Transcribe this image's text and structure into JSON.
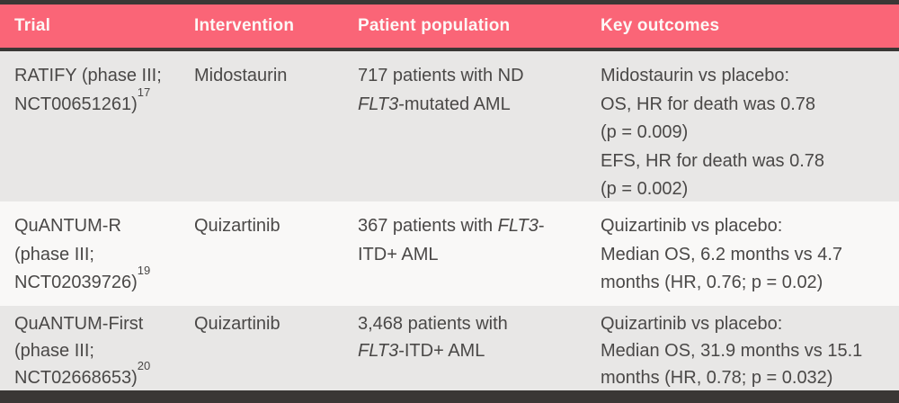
{
  "table": {
    "colors": {
      "accent": "#fa6577",
      "border": "#3a3735",
      "row-odd": "#e8e7e6",
      "row-even": "#f9f8f7",
      "text": "#4a4847",
      "header-text": "#fcf8f6"
    },
    "header": {
      "columns": [
        "Trial",
        "Intervention",
        "Patient population",
        "Key outcomes"
      ]
    },
    "rows": [
      {
        "trial": [
          {
            "t": "RATIFY (phase III;"
          },
          {
            "br": true
          },
          {
            "t": "NCT00651261)"
          },
          {
            "t": "17",
            "sup": true
          }
        ],
        "intervention": "Midostaurin",
        "population": [
          {
            "t": "717 patients with ND"
          },
          {
            "br": true
          },
          {
            "t": "FLT3",
            "i": true
          },
          {
            "t": "-mutated AML"
          }
        ],
        "outcomes": [
          {
            "t": "Midostaurin vs placebo:"
          },
          {
            "br": true
          },
          {
            "t": "OS, HR for death was 0.78"
          },
          {
            "br": true
          },
          {
            "t": "(p = 0.009)"
          },
          {
            "br": true
          },
          {
            "t": "EFS, HR for death was 0.78"
          },
          {
            "br": true
          },
          {
            "t": "(p = 0.002)"
          }
        ]
      },
      {
        "trial": [
          {
            "t": "QuANTUM-R"
          },
          {
            "br": true
          },
          {
            "t": "(phase III;"
          },
          {
            "br": true
          },
          {
            "t": "NCT02039726)"
          },
          {
            "t": "19",
            "sup": true
          }
        ],
        "intervention": "Quizartinib",
        "population": [
          {
            "t": "367 patients with "
          },
          {
            "t": "FLT3",
            "i": true
          },
          {
            "t": "-"
          },
          {
            "br": true
          },
          {
            "t": "ITD+ AML"
          }
        ],
        "outcomes": [
          {
            "t": "Quizartinib vs placebo:"
          },
          {
            "br": true
          },
          {
            "t": "Median OS, 6.2 months vs 4.7"
          },
          {
            "br": true
          },
          {
            "t": "months (HR, 0.76; p = 0.02)"
          }
        ]
      },
      {
        "trial": [
          {
            "t": "QuANTUM-First"
          },
          {
            "br": true
          },
          {
            "t": "(phase III;"
          },
          {
            "br": true
          },
          {
            "t": "NCT02668653)"
          },
          {
            "t": "20",
            "sup": true
          }
        ],
        "intervention": "Quizartinib",
        "population": [
          {
            "t": "3,468 patients with"
          },
          {
            "br": true
          },
          {
            "t": "FLT3",
            "i": true
          },
          {
            "t": "-ITD+ AML"
          }
        ],
        "outcomes": [
          {
            "t": "Quizartinib vs placebo:"
          },
          {
            "br": true
          },
          {
            "t": "Median OS, 31.9 months vs 15.1"
          },
          {
            "br": true
          },
          {
            "t": "months (HR, 0.78; p = 0.032)"
          }
        ]
      }
    ]
  }
}
